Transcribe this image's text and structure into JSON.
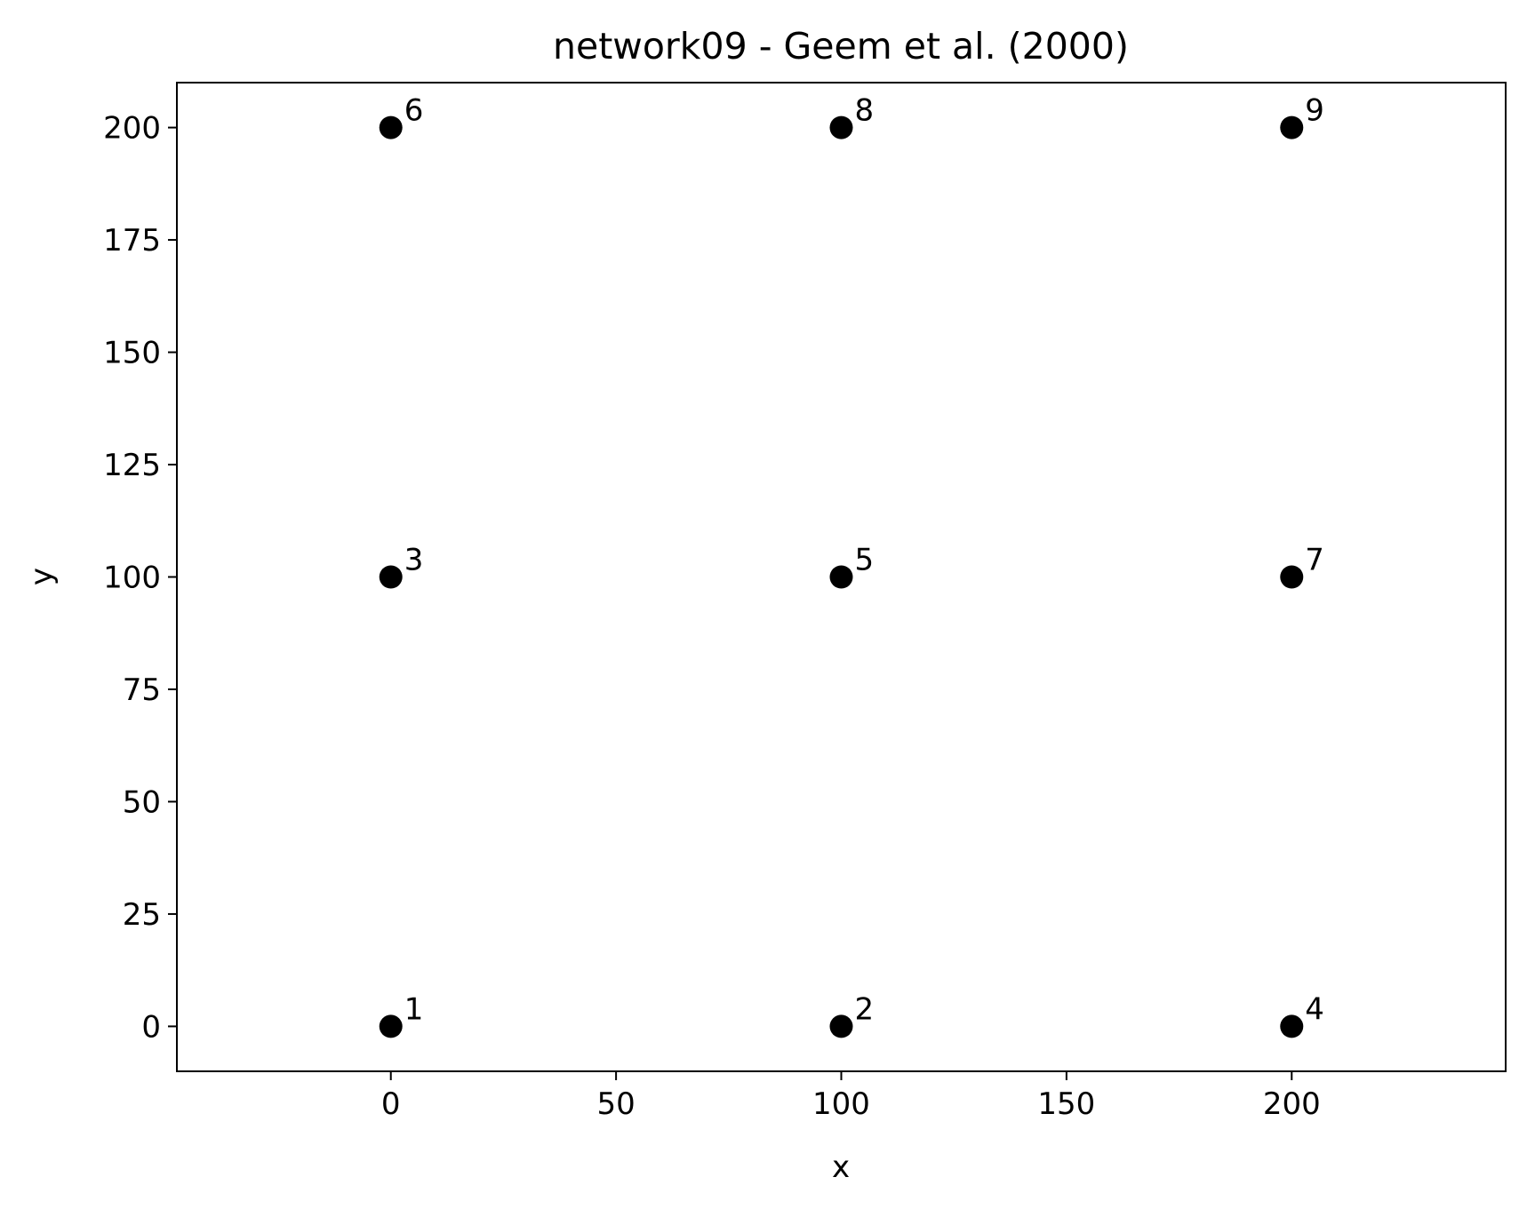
{
  "chart_data": {
    "type": "scatter",
    "title": "network09 - Geem et al. (2000)",
    "xlabel": "x",
    "ylabel": "y",
    "xlim": [
      -47.5,
      247.5
    ],
    "ylim": [
      -10,
      210
    ],
    "x_ticks": [
      0,
      50,
      100,
      150,
      200
    ],
    "x_tick_labels": [
      "0",
      "50",
      "100",
      "150",
      "200"
    ],
    "y_ticks": [
      0,
      25,
      50,
      75,
      100,
      125,
      150,
      175,
      200
    ],
    "y_tick_labels": [
      "0",
      "25",
      "50",
      "75",
      "100",
      "125",
      "150",
      "175",
      "200"
    ],
    "grid": false,
    "marker_color": "#000000",
    "points": [
      {
        "label": "1",
        "x": 0,
        "y": 0
      },
      {
        "label": "2",
        "x": 100,
        "y": 0
      },
      {
        "label": "3",
        "x": 0,
        "y": 100
      },
      {
        "label": "4",
        "x": 200,
        "y": 0
      },
      {
        "label": "5",
        "x": 100,
        "y": 100
      },
      {
        "label": "6",
        "x": 0,
        "y": 200
      },
      {
        "label": "7",
        "x": 200,
        "y": 100
      },
      {
        "label": "8",
        "x": 100,
        "y": 200
      },
      {
        "label": "9",
        "x": 200,
        "y": 200
      }
    ]
  }
}
